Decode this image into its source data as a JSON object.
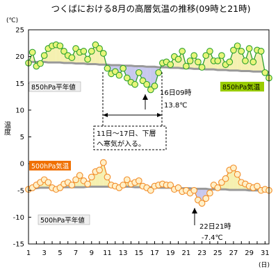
{
  "chart_data": {
    "type": "line",
    "title": "つくばにおける8月の高層気温の推移(09時と21時)",
    "y_unit": "(℃)",
    "ylabel": "温度",
    "x_unit": "(日)",
    "ylim": [
      -15,
      25
    ],
    "yticks": [
      25,
      20,
      15,
      10,
      5,
      0,
      -5,
      -10,
      -15
    ],
    "xlim": [
      1,
      31.5
    ],
    "xticks": [
      1,
      3,
      5,
      7,
      9,
      11,
      13,
      15,
      17,
      19,
      21,
      23,
      25,
      27,
      29,
      31
    ],
    "grid": false,
    "series": [
      {
        "name": "850hPa気温",
        "color": "#2ca02c",
        "badge_color": "#99cc00",
        "fill_above": "#f5f0b0",
        "fill_below": "#c8c8ee",
        "normal_name": "850hPa平年値",
        "x": [
          1,
          1.5,
          2,
          2.5,
          3,
          3.5,
          4,
          4.5,
          5,
          5.5,
          6,
          6.5,
          7,
          7.5,
          8,
          8.5,
          9,
          9.5,
          10,
          10.5,
          11,
          11.5,
          12,
          12.5,
          13,
          13.5,
          14,
          14.5,
          15,
          15.5,
          16,
          16.5,
          17,
          17.5,
          18,
          18.5,
          19,
          19.5,
          20,
          20.5,
          21,
          21.5,
          22,
          22.5,
          23,
          23.5,
          24,
          24.5,
          25,
          25.5,
          26,
          26.5,
          27,
          27.5,
          28,
          28.5,
          29,
          29.5,
          30,
          30.5,
          31,
          31.5
        ],
        "values": [
          18.8,
          20.8,
          18.2,
          18.7,
          20.2,
          21.5,
          22.0,
          22.2,
          22.0,
          21.0,
          20.2,
          19.8,
          21.5,
          20.8,
          21.0,
          19.5,
          21.0,
          22.2,
          21.5,
          20.6,
          17.8,
          16.8,
          17.2,
          16.5,
          17.8,
          16.0,
          15.2,
          14.8,
          17.0,
          15.5,
          14.8,
          13.8,
          14.5,
          17.0,
          18.8,
          19.0,
          18.5,
          20.0,
          19.5,
          21.0,
          18.2,
          19.2,
          20.2,
          19.0,
          18.0,
          20.2,
          21.0,
          19.2,
          19.2,
          20.2,
          18.5,
          19.0,
          21.2,
          22.0,
          21.0,
          19.2,
          21.5,
          19.0,
          21.2,
          21.0,
          17.0,
          16.0
        ],
        "normal": [
          19.0,
          19.0,
          19.0,
          19.0,
          19.0,
          18.9,
          18.9,
          18.9,
          18.9,
          18.8,
          18.8,
          18.8,
          18.7,
          18.7,
          18.7,
          18.6,
          18.6,
          18.6,
          18.5,
          18.5,
          18.5,
          18.4,
          18.4,
          18.4,
          18.3,
          18.3,
          18.3,
          18.2,
          18.2,
          18.2,
          18.1,
          18.1,
          18.1,
          18.0,
          18.0,
          18.0,
          17.9,
          17.9,
          17.9,
          17.8,
          17.8,
          17.8,
          17.7,
          17.7,
          17.7,
          17.6,
          17.6,
          17.6,
          17.5,
          17.5,
          17.5,
          17.4,
          17.4,
          17.4,
          17.3,
          17.3,
          17.3,
          17.2,
          17.2,
          17.2,
          17.1,
          17.1
        ]
      },
      {
        "name": "500hPa気温",
        "color": "#f28c28",
        "badge_color": "#f07000",
        "fill_above": "#f5f0b0",
        "fill_below": "#c8c8ee",
        "normal_name": "500hPa平年値",
        "x": [
          1,
          1.5,
          2,
          2.5,
          3,
          3.5,
          4,
          4.5,
          5,
          5.5,
          6,
          6.5,
          7,
          7.5,
          8,
          8.5,
          9,
          9.5,
          10,
          10.5,
          11,
          11.5,
          12,
          12.5,
          13,
          13.5,
          14,
          14.5,
          15,
          15.5,
          16,
          16.5,
          17,
          17.5,
          18,
          18.5,
          19,
          19.5,
          20,
          20.5,
          21,
          21.5,
          22,
          22.5,
          23,
          23.5,
          24,
          24.5,
          25,
          25.5,
          26,
          26.5,
          27,
          27.5,
          28,
          28.5,
          29,
          29.5,
          30,
          30.5,
          31,
          31.5
        ],
        "values": [
          -4.8,
          -4.5,
          -4.0,
          -3.5,
          -3.0,
          -3.5,
          -4.5,
          -4.8,
          -4.5,
          -3.8,
          -3.5,
          -4.0,
          -3.0,
          -2.2,
          -3.2,
          -3.8,
          -2.5,
          -1.5,
          -1.2,
          0.2,
          -2.5,
          -4.0,
          -4.2,
          -4.5,
          -4.0,
          -3.0,
          -3.8,
          -3.5,
          -3.2,
          -4.2,
          -4.5,
          -5.0,
          -4.2,
          -4.0,
          -3.8,
          -4.0,
          -4.0,
          -4.8,
          -4.5,
          -5.2,
          -5.0,
          -5.5,
          -5.0,
          -6.8,
          -7.4,
          -6.5,
          -5.5,
          -4.0,
          -4.5,
          -3.5,
          -2.8,
          -1.2,
          -0.8,
          -2.0,
          -3.5,
          -3.8,
          -4.2,
          -4.5,
          -4.2,
          -5.0,
          -4.8,
          -5.0
        ],
        "normal": [
          -4.6,
          -4.6,
          -4.6,
          -4.5,
          -4.5,
          -4.5,
          -4.5,
          -4.5,
          -4.5,
          -4.4,
          -4.4,
          -4.4,
          -4.4,
          -4.4,
          -4.4,
          -4.3,
          -4.3,
          -4.3,
          -4.3,
          -4.3,
          -4.3,
          -4.3,
          -4.3,
          -4.3,
          -4.3,
          -4.3,
          -4.3,
          -4.4,
          -4.4,
          -4.4,
          -4.4,
          -4.4,
          -4.4,
          -4.5,
          -4.5,
          -4.5,
          -4.5,
          -4.5,
          -4.6,
          -4.6,
          -4.6,
          -4.6,
          -4.7,
          -4.7,
          -4.7,
          -4.7,
          -4.8,
          -4.8,
          -4.8,
          -4.8,
          -4.8,
          -4.9,
          -4.9,
          -4.9,
          -4.9,
          -4.9,
          -5.0,
          -5.0,
          -5.0,
          -5.0,
          -5.0,
          -5.0
        ]
      }
    ],
    "annotations": [
      {
        "id": "a850min",
        "text": "16日09時",
        "text2": "13.8℃"
      },
      {
        "id": "a500min",
        "text": "22日21時",
        "text2": "-7.4℃"
      },
      {
        "id": "a_period",
        "text": "11日～17日、下層",
        "text2": "へ寒気が入る。"
      }
    ]
  }
}
